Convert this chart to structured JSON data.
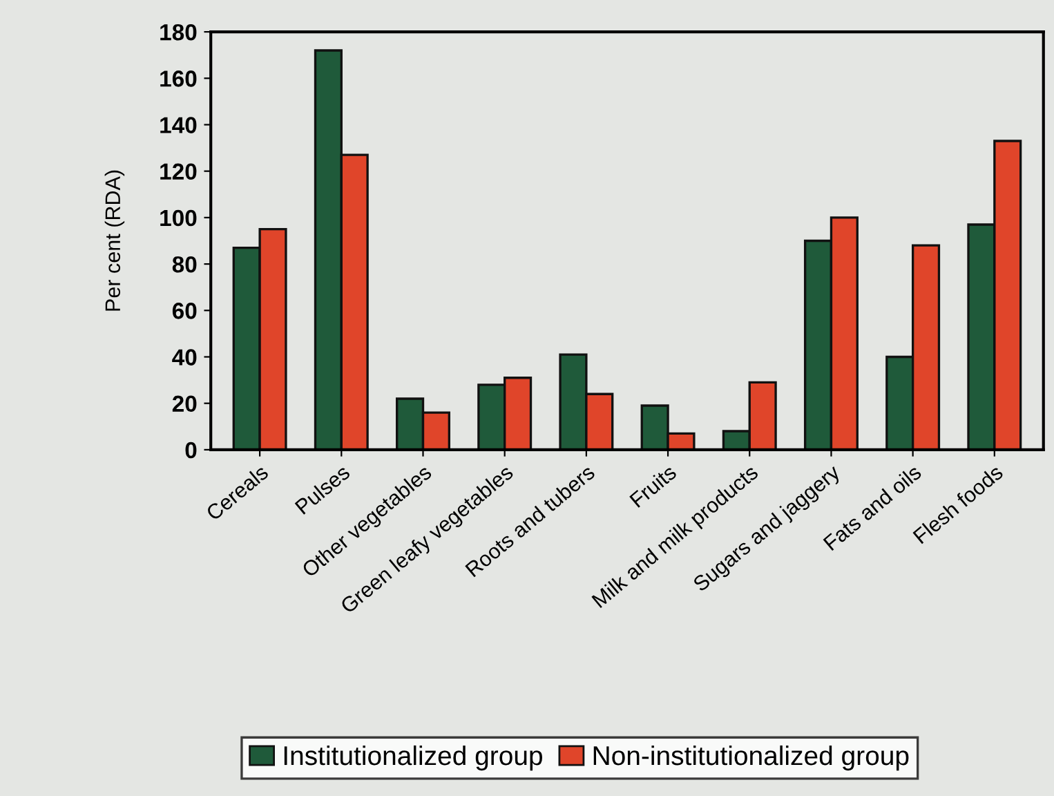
{
  "chart_data": {
    "type": "bar",
    "ylabel": "Per cent (RDA)",
    "categories": [
      "Cereals",
      "Pulses",
      "Other vegetables",
      "Green leafy vegetables",
      "Roots and tubers",
      "Fruits",
      "Milk and milk products",
      "Sugars and jaggery",
      "Fats and oils",
      "Flesh foods"
    ],
    "series": [
      {
        "name": "Institutionalized group",
        "color": "#1f5a3a",
        "values": [
          87,
          172,
          22,
          28,
          41,
          19,
          8,
          90,
          40,
          97
        ]
      },
      {
        "name": "Non-institutionalized group",
        "color": "#e0452a",
        "values": [
          95,
          127,
          16,
          31,
          24,
          7,
          29,
          100,
          88,
          133
        ]
      }
    ],
    "ylim": [
      0,
      180
    ],
    "yticks": [
      0,
      20,
      40,
      60,
      80,
      100,
      120,
      140,
      160,
      180
    ],
    "grid": false,
    "legend": "bottom"
  }
}
